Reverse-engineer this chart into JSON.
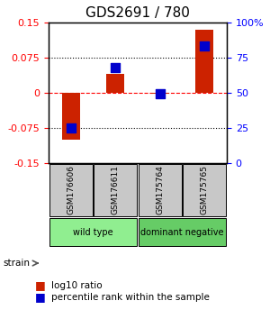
{
  "title": "GDS2691 / 780",
  "samples": [
    "GSM176606",
    "GSM176611",
    "GSM175764",
    "GSM175765"
  ],
  "log10_ratio": [
    -0.1,
    0.04,
    -0.002,
    0.135
  ],
  "percentile_rank": [
    25,
    68,
    49,
    83
  ],
  "ylim_left": [
    -0.15,
    0.15
  ],
  "ylim_right": [
    0,
    100
  ],
  "yticks_left": [
    -0.15,
    -0.075,
    0,
    0.075,
    0.15
  ],
  "yticks_right": [
    0,
    25,
    50,
    75,
    100
  ],
  "ytick_labels_left": [
    "-0.15",
    "-0.075",
    "0",
    "0.075",
    "0.15"
  ],
  "ytick_labels_right": [
    "0",
    "25",
    "50",
    "75",
    "100%"
  ],
  "hlines": [
    -0.075,
    0,
    0.075
  ],
  "hline_styles": [
    "dotted",
    "dashed",
    "dotted"
  ],
  "hline_colors": [
    "black",
    "red",
    "black"
  ],
  "groups": [
    {
      "label": "wild type",
      "samples": [
        0,
        1
      ],
      "color": "#90EE90"
    },
    {
      "label": "dominant negative",
      "samples": [
        2,
        3
      ],
      "color": "#66CC66"
    }
  ],
  "bar_color": "#CC2200",
  "dot_color": "#0000CC",
  "bar_width": 0.4,
  "dot_size": 55,
  "background_color": "#ffffff",
  "plot_bg_color": "#ffffff",
  "sample_box_color": "#C8C8C8",
  "title_fontsize": 11,
  "tick_fontsize": 8,
  "legend_fontsize": 7.5,
  "strain_label": "strain",
  "legend_items": [
    "log10 ratio",
    "percentile rank within the sample"
  ]
}
